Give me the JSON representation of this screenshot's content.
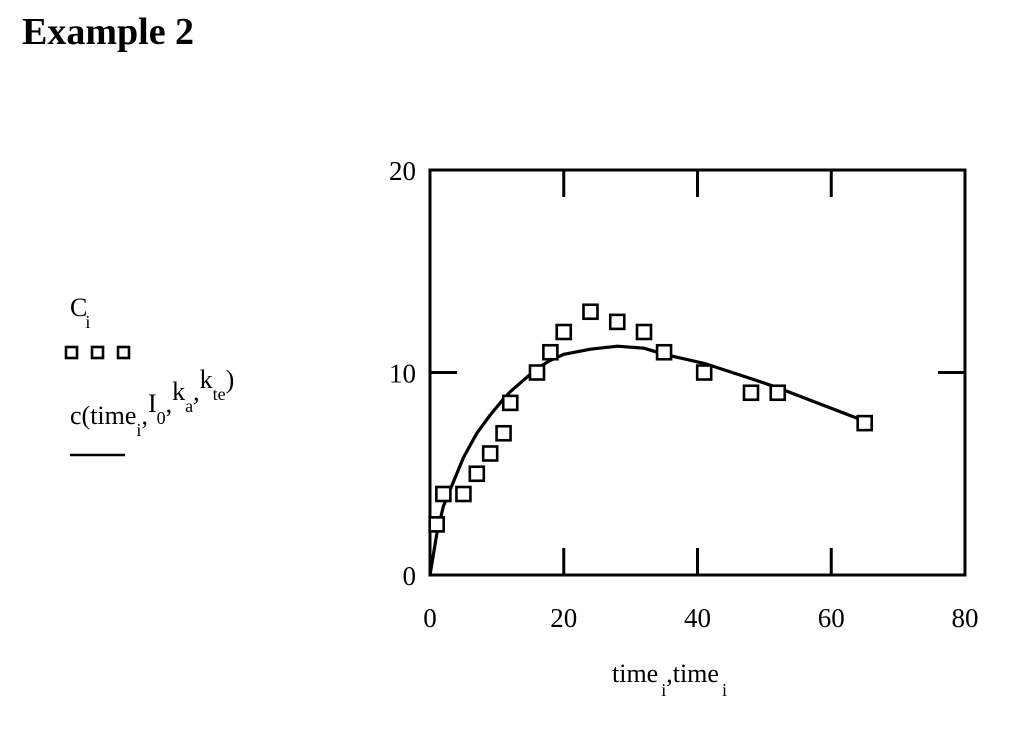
{
  "title": "Example 2",
  "chart_data": {
    "type": "scatter",
    "xlabel": "time_i, time_i",
    "xlabel_parts": {
      "a": "time",
      "a_sub": "i",
      "sep": ",",
      "b": "time",
      "b_sub": "i"
    },
    "ylabel": "C_i  c(time_i, I_0, k_a, k_te)",
    "ylabel_parts": {
      "series1": "C",
      "series1_sub": "i",
      "series2_func": "c",
      "series2_args": [
        {
          "base": "time",
          "sub": "i"
        },
        {
          "base": "I",
          "sub": "0"
        },
        {
          "base": "k",
          "sub": "a"
        },
        {
          "base": "k",
          "sub": "te"
        }
      ]
    },
    "xlim": [
      0,
      80
    ],
    "ylim": [
      0,
      20
    ],
    "xticks": [
      0,
      20,
      40,
      60,
      80
    ],
    "yticks": [
      0,
      10,
      20
    ],
    "grid": false,
    "series": [
      {
        "name": "C_i",
        "style": "markers",
        "marker": "open-square",
        "x": [
          1,
          2,
          5,
          7,
          9,
          11,
          12,
          16,
          18,
          20,
          24,
          28,
          32,
          35,
          41,
          48,
          52,
          65
        ],
        "y": [
          2.5,
          4,
          4,
          5,
          6,
          7,
          8.5,
          10,
          11,
          12,
          13,
          12.5,
          12,
          11,
          10,
          9,
          9,
          7.5
        ]
      },
      {
        "name": "c(time_i, I_0, k_a, k_te)",
        "style": "line",
        "x": [
          0,
          1,
          2,
          5,
          7,
          9,
          11,
          12,
          16,
          18,
          20,
          24,
          28,
          32,
          35,
          41,
          48,
          52,
          65
        ],
        "y": [
          0,
          2.0,
          3.4,
          5.8,
          7.0,
          7.9,
          8.7,
          9.05,
          10.2,
          10.6,
          10.9,
          11.15,
          11.3,
          11.2,
          10.9,
          10.45,
          9.7,
          9.25,
          7.6
        ]
      }
    ]
  }
}
